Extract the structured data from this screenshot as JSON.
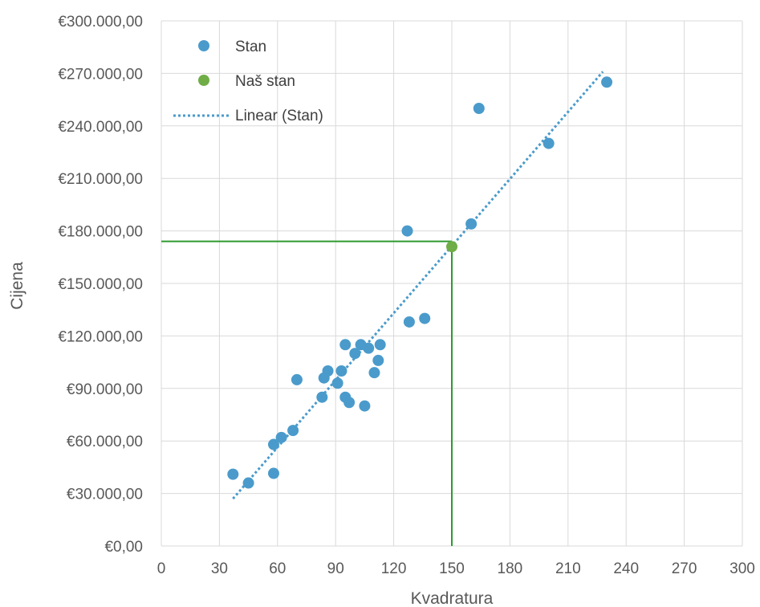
{
  "chart_data": {
    "type": "scatter",
    "xlabel": "Kvadratura",
    "ylabel": "Cijena",
    "xlim": [
      0,
      300
    ],
    "ylim": [
      0,
      300000
    ],
    "x_ticks": [
      "0",
      "30",
      "60",
      "90",
      "120",
      "150",
      "180",
      "210",
      "240",
      "270",
      "300"
    ],
    "x_tick_values": [
      0,
      30,
      60,
      90,
      120,
      150,
      180,
      210,
      240,
      270,
      300
    ],
    "y_ticks": [
      "€0,00",
      "€30.000,00",
      "€60.000,00",
      "€90.000,00",
      "€120.000,00",
      "€150.000,00",
      "€180.000,00",
      "€210.000,00",
      "€240.000,00",
      "€270.000,00",
      "€300.000,00"
    ],
    "y_tick_values": [
      0,
      30000,
      60000,
      90000,
      120000,
      150000,
      180000,
      210000,
      240000,
      270000,
      300000
    ],
    "grid": true,
    "legend_position": "top-left",
    "series": [
      {
        "name": "Stan",
        "color": "#4a9bcb",
        "points": [
          [
            37,
            41000
          ],
          [
            45,
            36000
          ],
          [
            58,
            41500
          ],
          [
            58,
            58000
          ],
          [
            62,
            62000
          ],
          [
            68,
            66000
          ],
          [
            70,
            95000
          ],
          [
            83,
            85000
          ],
          [
            84,
            96000
          ],
          [
            86,
            100000
          ],
          [
            91,
            93000
          ],
          [
            93,
            100000
          ],
          [
            95,
            85000
          ],
          [
            95,
            115000
          ],
          [
            97,
            82000
          ],
          [
            100,
            110000
          ],
          [
            103,
            115000
          ],
          [
            105,
            80000
          ],
          [
            107,
            113000
          ],
          [
            110,
            99000
          ],
          [
            112,
            106000
          ],
          [
            113,
            115000
          ],
          [
            127,
            180000
          ],
          [
            128,
            128000
          ],
          [
            136,
            130000
          ],
          [
            160,
            184000
          ],
          [
            164,
            250000
          ],
          [
            200,
            230000
          ],
          [
            230,
            265000
          ]
        ]
      },
      {
        "name": "Naš stan",
        "color": "#70ad47",
        "points": [
          [
            150,
            171000
          ]
        ]
      }
    ],
    "trendline": {
      "name": "Linear (Stan)",
      "color": "#4a9bcb",
      "style": "dotted",
      "points": [
        [
          37,
          27000
        ],
        [
          228,
          271000
        ]
      ]
    },
    "reference_lines": {
      "color": "#2e9a2e",
      "horizontal_y": 174000,
      "horizontal_x_end": 150,
      "vertical_x": 150,
      "vertical_y_end": 174000
    }
  }
}
